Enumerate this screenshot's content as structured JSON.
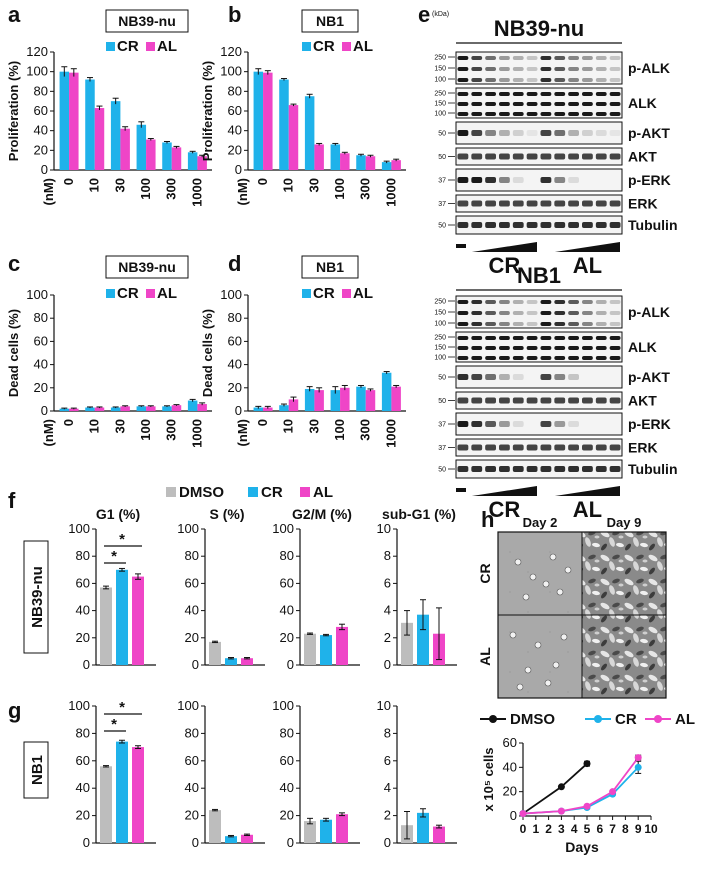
{
  "colors": {
    "dmso": "#bdbdbd",
    "cr": "#1fb2ea",
    "al": "#ef45c7"
  },
  "panel_labels": {
    "a": "a",
    "b": "b",
    "c": "c",
    "d": "d",
    "e": "e",
    "f": "f",
    "g": "g",
    "h": "h"
  },
  "legend": {
    "dmso": "DMSO",
    "cr": "CR",
    "al": "AL"
  },
  "chart_data": [
    {
      "id": "a",
      "type": "bar",
      "title": "NB39-nu",
      "ylabel": "Proliferation (%)",
      "xunit": "(nM)",
      "ylim": [
        0,
        120
      ],
      "yticks": [
        0,
        20,
        40,
        60,
        80,
        100,
        120
      ],
      "categories": [
        "0",
        "10",
        "30",
        "100",
        "300",
        "1000"
      ],
      "series": [
        {
          "name": "CR",
          "values": [
            100,
            92,
            70,
            46,
            28,
            18
          ],
          "err": [
            5,
            2,
            3,
            3,
            1,
            1
          ]
        },
        {
          "name": "AL",
          "values": [
            99,
            63,
            42,
            31,
            23,
            14
          ],
          "err": [
            4,
            2,
            2,
            1,
            1,
            1
          ]
        }
      ]
    },
    {
      "id": "b",
      "type": "bar",
      "title": "NB1",
      "ylabel": "Proliferation (%)",
      "xunit": "(nM)",
      "ylim": [
        0,
        120
      ],
      "yticks": [
        0,
        20,
        40,
        60,
        80,
        100,
        120
      ],
      "categories": [
        "0",
        "10",
        "30",
        "100",
        "300",
        "1000"
      ],
      "series": [
        {
          "name": "CR",
          "values": [
            100,
            92,
            75,
            26,
            15,
            8
          ],
          "err": [
            3,
            1,
            2,
            1,
            1,
            1
          ]
        },
        {
          "name": "AL",
          "values": [
            99,
            66,
            26,
            17,
            14,
            10
          ],
          "err": [
            2,
            1,
            1,
            1,
            1,
            1
          ]
        }
      ]
    },
    {
      "id": "c",
      "type": "bar",
      "title": "NB39-nu",
      "ylabel": "Dead cells (%)",
      "xunit": "(nM)",
      "ylim": [
        0,
        100
      ],
      "yticks": [
        0,
        20,
        40,
        60,
        80,
        100
      ],
      "categories": [
        "0",
        "10",
        "30",
        "100",
        "300",
        "1000"
      ],
      "series": [
        {
          "name": "CR",
          "values": [
            2,
            3,
            3,
            4,
            4,
            9
          ],
          "err": [
            0.5,
            0.5,
            0.5,
            0.5,
            0.5,
            1
          ]
        },
        {
          "name": "AL",
          "values": [
            2,
            3,
            4,
            4,
            5,
            6
          ],
          "err": [
            0.5,
            0.5,
            0.5,
            0.5,
            0.5,
            1
          ]
        }
      ]
    },
    {
      "id": "d",
      "type": "bar",
      "title": "NB1",
      "ylabel": "Dead cells (%)",
      "xunit": "(nM)",
      "ylim": [
        0,
        100
      ],
      "yticks": [
        0,
        20,
        40,
        60,
        80,
        100
      ],
      "categories": [
        "0",
        "10",
        "30",
        "100",
        "300",
        "1000"
      ],
      "series": [
        {
          "name": "CR",
          "values": [
            3,
            5,
            19,
            18,
            21,
            33
          ],
          "err": [
            1,
            1,
            2,
            3,
            1,
            1
          ]
        },
        {
          "name": "AL",
          "values": [
            3,
            10,
            18,
            20,
            18,
            21
          ],
          "err": [
            1,
            2,
            2,
            2,
            1,
            1
          ]
        }
      ]
    },
    {
      "id": "f-g1",
      "type": "bar",
      "title": "G1 (%)",
      "row": "NB39-nu",
      "ylim": [
        0,
        100
      ],
      "yticks": [
        0,
        20,
        40,
        60,
        80,
        100
      ],
      "series": [
        {
          "name": "DMSO",
          "values": [
            57
          ],
          "err": [
            1
          ]
        },
        {
          "name": "CR",
          "values": [
            70
          ],
          "err": [
            1
          ]
        },
        {
          "name": "AL",
          "values": [
            65
          ],
          "err": [
            2
          ]
        }
      ]
    },
    {
      "id": "f-s",
      "type": "bar",
      "title": "S (%)",
      "row": "NB39-nu",
      "ylim": [
        0,
        100
      ],
      "yticks": [
        0,
        20,
        40,
        60,
        80,
        100
      ],
      "series": [
        {
          "name": "DMSO",
          "values": [
            17
          ],
          "err": [
            0.5
          ]
        },
        {
          "name": "CR",
          "values": [
            5
          ],
          "err": [
            0.5
          ]
        },
        {
          "name": "AL",
          "values": [
            5
          ],
          "err": [
            0.5
          ]
        }
      ]
    },
    {
      "id": "f-g2m",
      "type": "bar",
      "title": "G2/M (%)",
      "row": "NB39-nu",
      "ylim": [
        0,
        100
      ],
      "yticks": [
        0,
        20,
        40,
        60,
        80,
        100
      ],
      "series": [
        {
          "name": "DMSO",
          "values": [
            23
          ],
          "err": [
            0.5
          ]
        },
        {
          "name": "CR",
          "values": [
            22
          ],
          "err": [
            0.5
          ]
        },
        {
          "name": "AL",
          "values": [
            28
          ],
          "err": [
            2
          ]
        }
      ]
    },
    {
      "id": "f-subg1",
      "type": "bar",
      "title": "sub-G1 (%)",
      "row": "NB39-nu",
      "ylim": [
        0,
        10
      ],
      "yticks": [
        0,
        2,
        4,
        6,
        8,
        10
      ],
      "series": [
        {
          "name": "DMSO",
          "values": [
            3.1
          ],
          "err": [
            0.9
          ]
        },
        {
          "name": "CR",
          "values": [
            3.7
          ],
          "err": [
            1.1
          ]
        },
        {
          "name": "AL",
          "values": [
            2.3
          ],
          "err": [
            1.9
          ]
        }
      ]
    },
    {
      "id": "g-g1",
      "type": "bar",
      "row": "NB1",
      "ylim": [
        0,
        100
      ],
      "yticks": [
        0,
        20,
        40,
        60,
        80,
        100
      ],
      "series": [
        {
          "name": "DMSO",
          "values": [
            56
          ],
          "err": [
            0.5
          ]
        },
        {
          "name": "CR",
          "values": [
            74
          ],
          "err": [
            1
          ]
        },
        {
          "name": "AL",
          "values": [
            70
          ],
          "err": [
            1
          ]
        }
      ]
    },
    {
      "id": "g-s",
      "type": "bar",
      "row": "NB1",
      "ylim": [
        0,
        100
      ],
      "yticks": [
        0,
        20,
        40,
        60,
        80,
        100
      ],
      "series": [
        {
          "name": "DMSO",
          "values": [
            24
          ],
          "err": [
            0.5
          ]
        },
        {
          "name": "CR",
          "values": [
            5
          ],
          "err": [
            0.5
          ]
        },
        {
          "name": "AL",
          "values": [
            6
          ],
          "err": [
            0.5
          ]
        }
      ]
    },
    {
      "id": "g-g2m",
      "type": "bar",
      "row": "NB1",
      "ylim": [
        0,
        100
      ],
      "yticks": [
        0,
        20,
        40,
        60,
        80,
        100
      ],
      "series": [
        {
          "name": "DMSO",
          "values": [
            16
          ],
          "err": [
            2
          ]
        },
        {
          "name": "CR",
          "values": [
            17
          ],
          "err": [
            1
          ]
        },
        {
          "name": "AL",
          "values": [
            21
          ],
          "err": [
            1
          ]
        }
      ]
    },
    {
      "id": "g-subg1",
      "type": "bar",
      "row": "NB1",
      "ylim": [
        0,
        10
      ],
      "yticks": [
        0,
        2,
        4,
        6,
        8,
        10
      ],
      "series": [
        {
          "name": "DMSO",
          "values": [
            1.3
          ],
          "err": [
            1
          ]
        },
        {
          "name": "CR",
          "values": [
            2.2
          ],
          "err": [
            0.3
          ]
        },
        {
          "name": "AL",
          "values": [
            1.2
          ],
          "err": [
            0.1
          ]
        }
      ]
    },
    {
      "id": "h-growth",
      "type": "line",
      "ylabel": "x 10⁵ cells",
      "xlabel": "Days",
      "xlim": [
        0,
        10
      ],
      "ylim": [
        0,
        60
      ],
      "xticks": [
        0,
        1,
        2,
        3,
        4,
        5,
        6,
        7,
        8,
        9,
        10
      ],
      "yticks": [
        0,
        20,
        40,
        60
      ],
      "series": [
        {
          "name": "DMSO",
          "x": [
            0,
            3,
            5
          ],
          "y": [
            2,
            24,
            43
          ],
          "err": [
            0,
            1,
            2
          ]
        },
        {
          "name": "CR",
          "x": [
            0,
            3,
            5,
            7,
            9
          ],
          "y": [
            2,
            4,
            7,
            18,
            40
          ],
          "err": [
            0,
            0.5,
            1,
            1,
            5
          ]
        },
        {
          "name": "AL",
          "x": [
            0,
            3,
            5,
            7,
            9
          ],
          "y": [
            2,
            4,
            8,
            20,
            48
          ],
          "err": [
            0,
            0.5,
            1,
            1,
            2
          ]
        }
      ]
    }
  ],
  "blots": {
    "kda": "(kDa)",
    "treatments": {
      "ctrl": "–",
      "cr": "CR",
      "al": "AL"
    },
    "panels": [
      {
        "title": "NB39-nu",
        "rows": [
          {
            "label": "p-ALK",
            "markers": [
              "250",
              "150",
              "100"
            ]
          },
          {
            "label": "ALK",
            "markers": [
              "250",
              "150",
              "100"
            ]
          },
          {
            "label": "p-AKT",
            "markers": [
              "50"
            ]
          },
          {
            "label": "AKT",
            "markers": [
              "50"
            ]
          },
          {
            "label": "p-ERK",
            "markers": [
              "37"
            ]
          },
          {
            "label": "ERK",
            "markers": [
              "37"
            ]
          },
          {
            "label": "Tubulin",
            "markers": [
              "50"
            ]
          }
        ]
      },
      {
        "title": "NB1",
        "rows": [
          {
            "label": "p-ALK",
            "markers": [
              "250",
              "150",
              "100"
            ]
          },
          {
            "label": "ALK",
            "markers": [
              "250",
              "150",
              "100"
            ]
          },
          {
            "label": "p-AKT",
            "markers": [
              "50"
            ]
          },
          {
            "label": "AKT",
            "markers": [
              "50"
            ]
          },
          {
            "label": "p-ERK",
            "markers": [
              "37"
            ]
          },
          {
            "label": "ERK",
            "markers": [
              "37"
            ]
          },
          {
            "label": "Tubulin",
            "markers": [
              "50"
            ]
          }
        ]
      }
    ]
  },
  "micrographs": {
    "columns": [
      "Day 2",
      "Day 9"
    ],
    "rows": [
      "CR",
      "AL"
    ]
  }
}
